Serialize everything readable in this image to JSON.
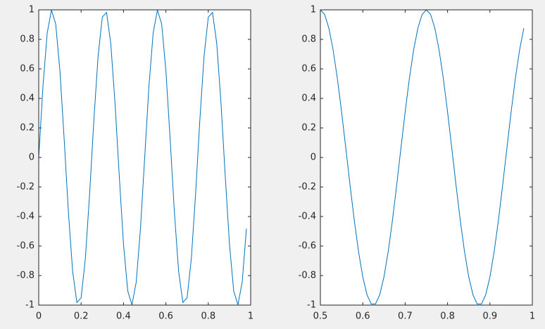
{
  "chart_data": [
    {
      "type": "line",
      "x": [
        0,
        0.02,
        0.04,
        0.06,
        0.08,
        0.1,
        0.12,
        0.14,
        0.16,
        0.18,
        0.2,
        0.22,
        0.24,
        0.26,
        0.28,
        0.3,
        0.32,
        0.34,
        0.36,
        0.38,
        0.4,
        0.42,
        0.44,
        0.46,
        0.48,
        0.5,
        0.52,
        0.54,
        0.56,
        0.58,
        0.6,
        0.62,
        0.64,
        0.66,
        0.68,
        0.7,
        0.72,
        0.74,
        0.76,
        0.78,
        0.8,
        0.82,
        0.84,
        0.86,
        0.88,
        0.9,
        0.92,
        0.94,
        0.96,
        0.98
      ],
      "series": [
        {
          "color": "#0072BD",
          "values": [
            0,
            0.482,
            0.844,
            0.998,
            0.905,
            0.588,
            0.125,
            -0.368,
            -0.771,
            -0.982,
            -0.951,
            -0.685,
            -0.249,
            0.249,
            0.685,
            0.951,
            0.982,
            0.771,
            0.368,
            -0.125,
            -0.588,
            -0.905,
            -0.998,
            -0.844,
            -0.482,
            0,
            0.482,
            0.844,
            0.998,
            0.905,
            0.588,
            0.125,
            -0.368,
            -0.771,
            -0.982,
            -0.951,
            -0.685,
            -0.249,
            0.249,
            0.685,
            0.951,
            0.982,
            0.771,
            0.368,
            -0.125,
            -0.588,
            -0.905,
            -0.998,
            -0.844,
            -0.482
          ]
        }
      ],
      "xlim": [
        0,
        1
      ],
      "xticks": [
        0,
        0.2,
        0.4,
        0.6,
        0.8,
        1
      ],
      "ylim": [
        -1,
        1
      ],
      "yticks": [
        -1,
        -0.8,
        -0.6,
        -0.4,
        -0.2,
        0,
        0.2,
        0.4,
        0.6,
        0.8,
        1
      ],
      "grid": false
    },
    {
      "type": "line",
      "x": [
        0.5,
        0.51,
        0.52,
        0.53,
        0.54,
        0.55,
        0.56,
        0.57,
        0.58,
        0.59,
        0.6,
        0.61,
        0.62,
        0.63,
        0.64,
        0.65,
        0.66,
        0.67,
        0.68,
        0.69,
        0.7,
        0.71,
        0.72,
        0.73,
        0.74,
        0.75,
        0.76,
        0.77,
        0.78,
        0.79,
        0.8,
        0.81,
        0.82,
        0.83,
        0.84,
        0.85,
        0.86,
        0.87,
        0.88,
        0.89,
        0.9,
        0.91,
        0.92,
        0.93,
        0.94,
        0.95,
        0.96,
        0.97,
        0.98
      ],
      "series": [
        {
          "color": "#0072BD",
          "values": [
            1,
            0.969,
            0.876,
            0.729,
            0.536,
            0.309,
            0.063,
            -0.187,
            -0.426,
            -0.637,
            -0.809,
            -0.93,
            -0.992,
            -0.992,
            -0.93,
            -0.809,
            -0.637,
            -0.426,
            -0.187,
            0.063,
            0.309,
            0.536,
            0.729,
            0.876,
            0.969,
            1,
            0.969,
            0.876,
            0.729,
            0.536,
            0.309,
            0.063,
            -0.187,
            -0.426,
            -0.637,
            -0.809,
            -0.93,
            -0.992,
            -0.992,
            -0.93,
            -0.809,
            -0.637,
            -0.426,
            -0.187,
            0.063,
            0.309,
            0.536,
            0.729,
            0.876
          ]
        }
      ],
      "xlim": [
        0.5,
        1
      ],
      "xticks": [
        0.5,
        0.6,
        0.7,
        0.8,
        0.9,
        1
      ],
      "ylim": [
        -1,
        1
      ],
      "yticks": [
        -1,
        -0.8,
        -0.6,
        -0.4,
        -0.2,
        0,
        0.2,
        0.4,
        0.6,
        0.8,
        1
      ],
      "grid": false
    }
  ]
}
